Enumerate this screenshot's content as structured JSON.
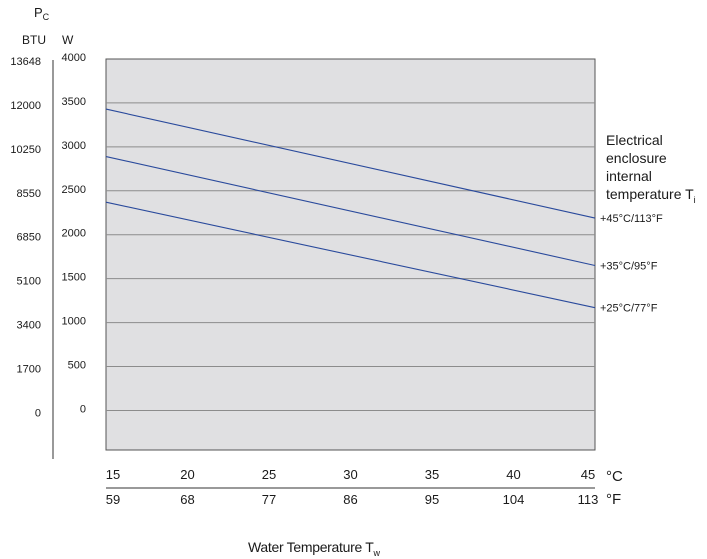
{
  "chart_data": {
    "type": "line",
    "y_axis_title_main": "P",
    "y_axis_title_sub": "C",
    "y_unit_btu": "BTU",
    "y_unit_w": "W",
    "x_axis_title_main": "Water Temperature T",
    "x_axis_title_sub": "w",
    "x_unit_c": "°C",
    "x_unit_f": "°F",
    "legend_title_lines": [
      "Electrical",
      "enclosure",
      "internal"
    ],
    "legend_title_last_main": "temperature T",
    "legend_title_last_sub": "i",
    "xlim": [
      15,
      45
    ],
    "ylim": [
      -450,
      4000
    ],
    "x_ticks_c": [
      "15",
      "20",
      "25",
      "30",
      "35",
      "40",
      "45"
    ],
    "x_ticks_f": [
      "59",
      "68",
      "77",
      "86",
      "95",
      "104",
      "113"
    ],
    "y_ticks_w": [
      {
        "value": 4000,
        "label": "4000"
      },
      {
        "value": 3500,
        "label": "3500"
      },
      {
        "value": 3000,
        "label": "3000"
      },
      {
        "value": 2500,
        "label": "2500"
      },
      {
        "value": 2000,
        "label": "2000"
      },
      {
        "value": 1500,
        "label": "1500"
      },
      {
        "value": 1000,
        "label": "1000"
      },
      {
        "value": 500,
        "label": "500"
      },
      {
        "value": 0,
        "label": "0"
      }
    ],
    "y_ticks_btu": [
      "13648",
      "12000",
      "10250",
      "8550",
      "6850",
      "5100",
      "3400",
      "1700",
      "0"
    ],
    "series": [
      {
        "name": "+45°C/113°F",
        "x": [
          15,
          45
        ],
        "y": [
          3430,
          2190
        ]
      },
      {
        "name": "+35°C/95°F",
        "x": [
          15,
          45
        ],
        "y": [
          2890,
          1650
        ]
      },
      {
        "name": "+25°C/77°F",
        "x": [
          15,
          45
        ],
        "y": [
          2370,
          1170
        ]
      }
    ],
    "grid": true,
    "colors": {
      "plot_background": "#e0e0e2",
      "gridline": "#8c8c8c",
      "series_line": "#2a4a9c",
      "text": "#1a1a1a"
    }
  }
}
